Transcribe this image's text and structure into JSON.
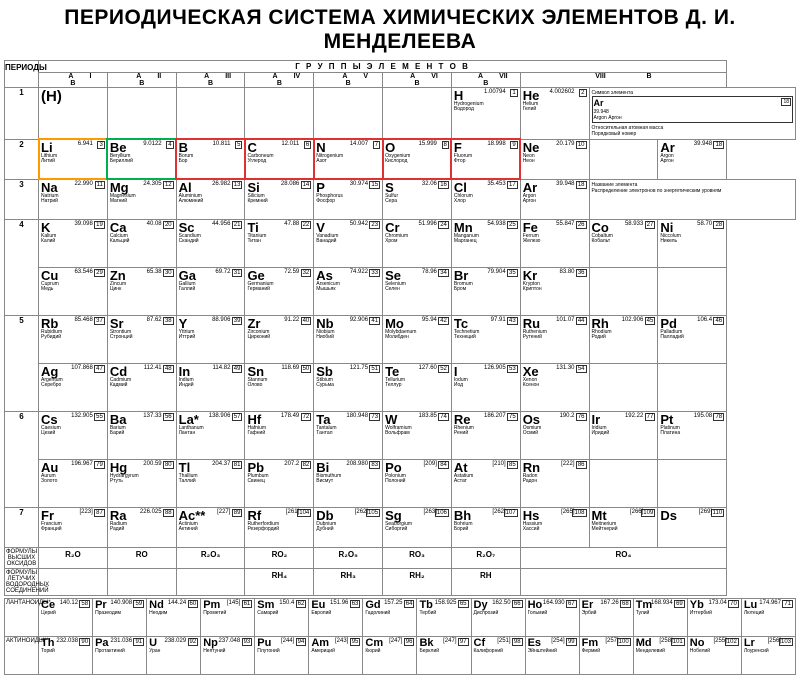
{
  "title": "ПЕРИОДИЧЕСКАЯ СИСТЕМА ХИМИЧЕСКИХ ЭЛЕМЕНТОВ Д. И. МЕНДЕЛЕЕВА",
  "headers": {
    "periods": "ПЕРИОДЫ",
    "groups": "Г Р У П П Ы   Э Л Е М Е Н Т О В",
    "sub_a": "А",
    "sub_b": "В"
  },
  "group_nums": [
    "I",
    "II",
    "III",
    "IV",
    "V",
    "VI",
    "VII",
    "VIII"
  ],
  "oxide_label": "ФОРМУЛЫ ВЫСШИХ ОКСИДОВ",
  "volatile_label": "ФОРМУЛЫ ЛЕТУЧИХ ВОДОРОДНЫХ СОЕДИНЕНИЙ",
  "lanth_label": "ЛАНТАНОИДЫ*",
  "act_label": "АКТИНОИДЫ**",
  "oxides": [
    "R₂O",
    "RO",
    "R₂O₃",
    "RO₂",
    "R₂O₅",
    "RO₃",
    "R₂O₇",
    "RO₄"
  ],
  "hydrides": [
    "",
    "",
    "",
    "RH₄",
    "RH₃",
    "RH₂",
    "RH",
    ""
  ],
  "legend": {
    "l1": "Символ элемента",
    "l2": "Относительная атомная масса",
    "l3": "Порядковый номер",
    "l4": "Название элемента",
    "l5": "Распределение электронов по энергетическим уровням"
  },
  "periods": [
    {
      "n": "1",
      "rows": [
        [
          {
            "sym": "(H)",
            "big": true
          },
          {
            "e": true
          },
          {
            "e": true
          },
          {
            "e": true
          },
          {
            "e": true
          },
          {
            "e": true
          },
          {
            "sym": "H",
            "num": "1",
            "mass": "1.00794",
            "lat": "Hydrogenium",
            "ru": "Водород"
          },
          {
            "sym": "He",
            "num": "2",
            "mass": "4.002602",
            "lat": "Helium",
            "ru": "Гелий"
          },
          {
            "legend": true,
            "span": 3
          }
        ]
      ]
    },
    {
      "n": "2",
      "rows": [
        [
          {
            "sym": "Li",
            "num": "3",
            "mass": "6.941",
            "lat": "Lithium",
            "ru": "Литий",
            "hl": "orange"
          },
          {
            "sym": "Be",
            "num": "4",
            "mass": "9.0122",
            "lat": "Beryllium",
            "ru": "Бериллий",
            "hl": "green"
          },
          {
            "sym": "B",
            "num": "5",
            "mass": "10.811",
            "lat": "Borum",
            "ru": "Бор",
            "hl": "red"
          },
          {
            "sym": "C",
            "num": "6",
            "mass": "12.011",
            "lat": "Carboneum",
            "ru": "Углерод",
            "hl": "red"
          },
          {
            "sym": "N",
            "num": "7",
            "mass": "14.007",
            "lat": "Nitrogenium",
            "ru": "Азот",
            "hl": "red"
          },
          {
            "sym": "O",
            "num": "8",
            "mass": "15.999",
            "lat": "Oxygenium",
            "ru": "Кислород",
            "hl": "red"
          },
          {
            "sym": "F",
            "num": "9",
            "mass": "18.998",
            "lat": "Fluorum",
            "ru": "Фтор",
            "hl": "red"
          },
          {
            "sym": "Ne",
            "num": "10",
            "mass": "20.179",
            "lat": "Neon",
            "ru": "Неон"
          },
          {
            "e": true
          },
          {
            "sym": "Ar",
            "num": "18",
            "mass": "39.948",
            "lat": "Argon",
            "ru": "Аргон",
            "legend2": true
          }
        ]
      ]
    },
    {
      "n": "3",
      "rows": [
        [
          {
            "sym": "Na",
            "num": "11",
            "mass": "22.990",
            "lat": "Natrium",
            "ru": "Натрий"
          },
          {
            "sym": "Mg",
            "num": "12",
            "mass": "24.305",
            "lat": "Magnesium",
            "ru": "Магний"
          },
          {
            "sym": "Al",
            "num": "13",
            "mass": "26.982",
            "lat": "Aluminium",
            "ru": "Алюминий"
          },
          {
            "sym": "Si",
            "num": "14",
            "mass": "28.086",
            "lat": "Silicium",
            "ru": "Кремний"
          },
          {
            "sym": "P",
            "num": "15",
            "mass": "30.974",
            "lat": "Phosphorus",
            "ru": "Фосфор"
          },
          {
            "sym": "S",
            "num": "16",
            "mass": "32.06",
            "lat": "Sulfur",
            "ru": "Сера"
          },
          {
            "sym": "Cl",
            "num": "17",
            "mass": "35.453",
            "lat": "Chlorum",
            "ru": "Хлор"
          },
          {
            "sym": "Ar",
            "num": "18",
            "mass": "39.948",
            "lat": "Argon",
            "ru": "Аргон"
          },
          {
            "legend": true,
            "span": 3,
            "part": 2
          }
        ]
      ]
    },
    {
      "n": "4",
      "rows": [
        [
          {
            "sym": "K",
            "num": "19",
            "mass": "39.098",
            "lat": "Kalium",
            "ru": "Калий"
          },
          {
            "sym": "Ca",
            "num": "20",
            "mass": "40.08",
            "lat": "Calcium",
            "ru": "Кальций"
          },
          {
            "sym": "Sc",
            "num": "21",
            "mass": "44.956",
            "lat": "Scandium",
            "ru": "Скандий"
          },
          {
            "sym": "Ti",
            "num": "22",
            "mass": "47.88",
            "lat": "Titanium",
            "ru": "Титан"
          },
          {
            "sym": "V",
            "num": "23",
            "mass": "50.942",
            "lat": "Vanadium",
            "ru": "Ванадий"
          },
          {
            "sym": "Cr",
            "num": "24",
            "mass": "51.996",
            "lat": "Chromium",
            "ru": "Хром"
          },
          {
            "sym": "Mn",
            "num": "25",
            "mass": "54.938",
            "lat": "Manganum",
            "ru": "Марганец"
          },
          {
            "sym": "Fe",
            "num": "26",
            "mass": "55.847",
            "lat": "Ferrum",
            "ru": "Железо"
          },
          {
            "sym": "Co",
            "num": "27",
            "mass": "58.933",
            "lat": "Cobaltum",
            "ru": "Кобальт"
          },
          {
            "sym": "Ni",
            "num": "28",
            "mass": "58.70",
            "lat": "Niccolum",
            "ru": "Никель"
          }
        ],
        [
          {
            "sym": "Cu",
            "num": "29",
            "mass": "63.546",
            "lat": "Cuprum",
            "ru": "Медь"
          },
          {
            "sym": "Zn",
            "num": "30",
            "mass": "65.38",
            "lat": "Zincum",
            "ru": "Цинк"
          },
          {
            "sym": "Ga",
            "num": "31",
            "mass": "69.72",
            "lat": "Gallium",
            "ru": "Галлий"
          },
          {
            "sym": "Ge",
            "num": "32",
            "mass": "72.59",
            "lat": "Germanium",
            "ru": "Германий"
          },
          {
            "sym": "As",
            "num": "33",
            "mass": "74.922",
            "lat": "Arsenicum",
            "ru": "Мышьяк"
          },
          {
            "sym": "Se",
            "num": "34",
            "mass": "78.96",
            "lat": "Selenium",
            "ru": "Селен"
          },
          {
            "sym": "Br",
            "num": "35",
            "mass": "79.904",
            "lat": "Bromum",
            "ru": "Бром"
          },
          {
            "sym": "Kr",
            "num": "36",
            "mass": "83.80",
            "lat": "Krypton",
            "ru": "Криптон"
          },
          {
            "e": true
          },
          {
            "e": true
          }
        ]
      ]
    },
    {
      "n": "5",
      "rows": [
        [
          {
            "sym": "Rb",
            "num": "37",
            "mass": "85.468",
            "lat": "Rubidium",
            "ru": "Рубидий"
          },
          {
            "sym": "Sr",
            "num": "38",
            "mass": "87.62",
            "lat": "Strontium",
            "ru": "Стронций"
          },
          {
            "sym": "Y",
            "num": "39",
            "mass": "88.906",
            "lat": "Yttrium",
            "ru": "Иттрий"
          },
          {
            "sym": "Zr",
            "num": "40",
            "mass": "91.22",
            "lat": "Zirconium",
            "ru": "Цирконий"
          },
          {
            "sym": "Nb",
            "num": "41",
            "mass": "92.906",
            "lat": "Niobium",
            "ru": "Ниобий"
          },
          {
            "sym": "Mo",
            "num": "42",
            "mass": "95.94",
            "lat": "Molybdaenum",
            "ru": "Молибден"
          },
          {
            "sym": "Tc",
            "num": "43",
            "mass": "97.91",
            "lat": "Technetium",
            "ru": "Технеций"
          },
          {
            "sym": "Ru",
            "num": "44",
            "mass": "101.07",
            "lat": "Ruthenium",
            "ru": "Рутений"
          },
          {
            "sym": "Rh",
            "num": "45",
            "mass": "102.906",
            "lat": "Rhodium",
            "ru": "Родий"
          },
          {
            "sym": "Pd",
            "num": "46",
            "mass": "106.4",
            "lat": "Palladium",
            "ru": "Палладий"
          }
        ],
        [
          {
            "sym": "Ag",
            "num": "47",
            "mass": "107.868",
            "lat": "Argentum",
            "ru": "Серебро"
          },
          {
            "sym": "Cd",
            "num": "48",
            "mass": "112.41",
            "lat": "Cadmium",
            "ru": "Кадмий"
          },
          {
            "sym": "In",
            "num": "49",
            "mass": "114.82",
            "lat": "Indium",
            "ru": "Индий"
          },
          {
            "sym": "Sn",
            "num": "50",
            "mass": "118.69",
            "lat": "Stannum",
            "ru": "Олово"
          },
          {
            "sym": "Sb",
            "num": "51",
            "mass": "121.75",
            "lat": "Stibium",
            "ru": "Сурьма"
          },
          {
            "sym": "Te",
            "num": "52",
            "mass": "127.60",
            "lat": "Tellurium",
            "ru": "Теллур"
          },
          {
            "sym": "I",
            "num": "53",
            "mass": "126.905",
            "lat": "Iodum",
            "ru": "Иод"
          },
          {
            "sym": "Xe",
            "num": "54",
            "mass": "131.30",
            "lat": "Xenon",
            "ru": "Ксенон"
          },
          {
            "e": true
          },
          {
            "e": true
          }
        ]
      ]
    },
    {
      "n": "6",
      "rows": [
        [
          {
            "sym": "Cs",
            "num": "55",
            "mass": "132.905",
            "lat": "Caesium",
            "ru": "Цезий"
          },
          {
            "sym": "Ba",
            "num": "56",
            "mass": "137.33",
            "lat": "Barium",
            "ru": "Барий"
          },
          {
            "sym": "La*",
            "num": "57",
            "mass": "138.906",
            "lat": "Lanthanum",
            "ru": "Лантан"
          },
          {
            "sym": "Hf",
            "num": "72",
            "mass": "178.49",
            "lat": "Hafnium",
            "ru": "Гафний"
          },
          {
            "sym": "Ta",
            "num": "73",
            "mass": "180.948",
            "lat": "Tantalum",
            "ru": "Тантал"
          },
          {
            "sym": "W",
            "num": "74",
            "mass": "183.85",
            "lat": "Wolframium",
            "ru": "Вольфрам"
          },
          {
            "sym": "Re",
            "num": "75",
            "mass": "186.207",
            "lat": "Rhenium",
            "ru": "Рений"
          },
          {
            "sym": "Os",
            "num": "76",
            "mass": "190.2",
            "lat": "Osmium",
            "ru": "Осмий"
          },
          {
            "sym": "Ir",
            "num": "77",
            "mass": "192.22",
            "lat": "Iridium",
            "ru": "Иридий"
          },
          {
            "sym": "Pt",
            "num": "78",
            "mass": "195.08",
            "lat": "Platinum",
            "ru": "Платина"
          }
        ],
        [
          {
            "sym": "Au",
            "num": "79",
            "mass": "196.967",
            "lat": "Aurum",
            "ru": "Золото"
          },
          {
            "sym": "Hg",
            "num": "80",
            "mass": "200.59",
            "lat": "Hydrargyrum",
            "ru": "Ртуть"
          },
          {
            "sym": "Tl",
            "num": "81",
            "mass": "204.37",
            "lat": "Thallium",
            "ru": "Таллий"
          },
          {
            "sym": "Pb",
            "num": "82",
            "mass": "207.2",
            "lat": "Plumbum",
            "ru": "Свинец"
          },
          {
            "sym": "Bi",
            "num": "83",
            "mass": "208.980",
            "lat": "Bismuthum",
            "ru": "Висмут"
          },
          {
            "sym": "Po",
            "num": "84",
            "mass": "[209]",
            "lat": "Polonium",
            "ru": "Полоний"
          },
          {
            "sym": "At",
            "num": "85",
            "mass": "[210]",
            "lat": "Astatium",
            "ru": "Астат"
          },
          {
            "sym": "Rn",
            "num": "86",
            "mass": "[222]",
            "lat": "Radon",
            "ru": "Радон"
          },
          {
            "e": true
          },
          {
            "e": true
          }
        ]
      ]
    },
    {
      "n": "7",
      "rows": [
        [
          {
            "sym": "Fr",
            "num": "87",
            "mass": "[223]",
            "lat": "Francium",
            "ru": "Франций"
          },
          {
            "sym": "Ra",
            "num": "88",
            "mass": "226.025",
            "lat": "Radium",
            "ru": "Радий"
          },
          {
            "sym": "Ac**",
            "num": "89",
            "mass": "[227]",
            "lat": "Actinium",
            "ru": "Актиний"
          },
          {
            "sym": "Rf",
            "num": "104",
            "mass": "[261]",
            "lat": "Rutherfordium",
            "ru": "Резерфордий"
          },
          {
            "sym": "Db",
            "num": "105",
            "mass": "[262]",
            "lat": "Dubnium",
            "ru": "Дубний"
          },
          {
            "sym": "Sg",
            "num": "106",
            "mass": "[263]",
            "lat": "Seaborgium",
            "ru": "Сиборгий"
          },
          {
            "sym": "Bh",
            "num": "107",
            "mass": "[262]",
            "lat": "Bohrium",
            "ru": "Борий"
          },
          {
            "sym": "Hs",
            "num": "108",
            "mass": "[265]",
            "lat": "Hassium",
            "ru": "Хассий"
          },
          {
            "sym": "Mt",
            "num": "109",
            "mass": "[266]",
            "lat": "Meitnerium",
            "ru": "Мейтнерий"
          },
          {
            "sym": "Ds",
            "num": "110",
            "mass": "[269]",
            "lat": "",
            "ru": ""
          }
        ]
      ]
    }
  ],
  "lanthanides": [
    {
      "sym": "Ce",
      "num": "58",
      "mass": "140.12",
      "ru": "Церий"
    },
    {
      "sym": "Pr",
      "num": "59",
      "mass": "140.908",
      "ru": "Празеодим"
    },
    {
      "sym": "Nd",
      "num": "60",
      "mass": "144.24",
      "ru": "Неодим"
    },
    {
      "sym": "Pm",
      "num": "61",
      "mass": "[145]",
      "ru": "Прометий"
    },
    {
      "sym": "Sm",
      "num": "62",
      "mass": "150.4",
      "ru": "Самарий"
    },
    {
      "sym": "Eu",
      "num": "63",
      "mass": "151.96",
      "ru": "Европий"
    },
    {
      "sym": "Gd",
      "num": "64",
      "mass": "157.25",
      "ru": "Гадолиний"
    },
    {
      "sym": "Tb",
      "num": "65",
      "mass": "158.925",
      "ru": "Тербий"
    },
    {
      "sym": "Dy",
      "num": "66",
      "mass": "162.50",
      "ru": "Диспрозий"
    },
    {
      "sym": "Ho",
      "num": "67",
      "mass": "164.930",
      "ru": "Гольмий"
    },
    {
      "sym": "Er",
      "num": "68",
      "mass": "167.26",
      "ru": "Эрбий"
    },
    {
      "sym": "Tm",
      "num": "69",
      "mass": "168.934",
      "ru": "Тулий"
    },
    {
      "sym": "Yb",
      "num": "70",
      "mass": "173.04",
      "ru": "Иттербий"
    },
    {
      "sym": "Lu",
      "num": "71",
      "mass": "174.967",
      "ru": "Лютеций"
    }
  ],
  "actinides": [
    {
      "sym": "Th",
      "num": "90",
      "mass": "232.038",
      "ru": "Торий"
    },
    {
      "sym": "Pa",
      "num": "91",
      "mass": "231.036",
      "ru": "Протактиний"
    },
    {
      "sym": "U",
      "num": "92",
      "mass": "238.029",
      "ru": "Уран"
    },
    {
      "sym": "Np",
      "num": "93",
      "mass": "237.048",
      "ru": "Нептуний"
    },
    {
      "sym": "Pu",
      "num": "94",
      "mass": "[244]",
      "ru": "Плутоний"
    },
    {
      "sym": "Am",
      "num": "95",
      "mass": "[243]",
      "ru": "Америций"
    },
    {
      "sym": "Cm",
      "num": "96",
      "mass": "[247]",
      "ru": "Кюрий"
    },
    {
      "sym": "Bk",
      "num": "97",
      "mass": "[247]",
      "ru": "Берклий"
    },
    {
      "sym": "Cf",
      "num": "98",
      "mass": "[251]",
      "ru": "Калифорний"
    },
    {
      "sym": "Es",
      "num": "99",
      "mass": "[254]",
      "ru": "Эйнштейний"
    },
    {
      "sym": "Fm",
      "num": "100",
      "mass": "[257]",
      "ru": "Фермий"
    },
    {
      "sym": "Md",
      "num": "101",
      "mass": "[258]",
      "ru": "Менделевий"
    },
    {
      "sym": "No",
      "num": "102",
      "mass": "[255]",
      "ru": "Нобелий"
    },
    {
      "sym": "Lr",
      "num": "103",
      "mass": "[256]",
      "ru": "Лоуренсий"
    }
  ]
}
